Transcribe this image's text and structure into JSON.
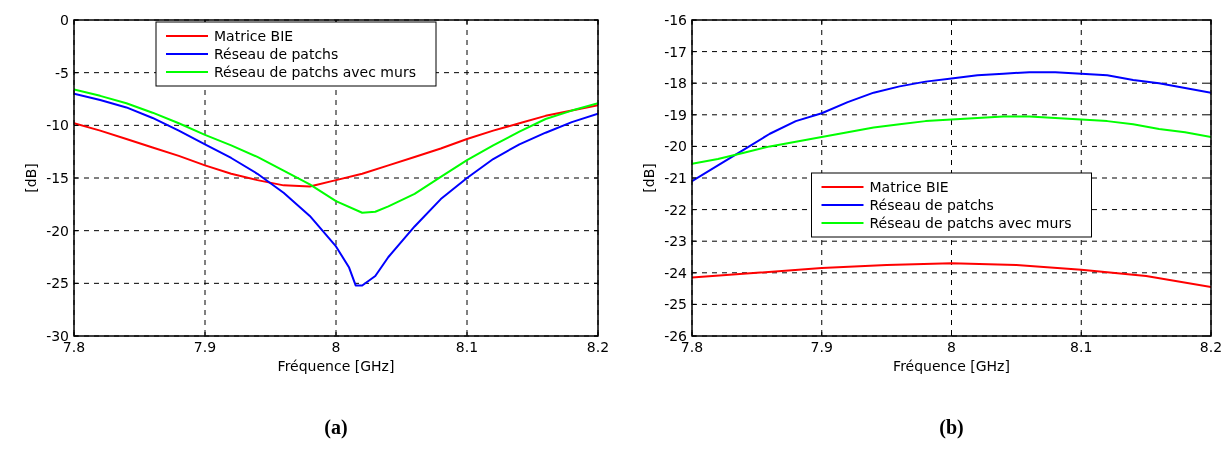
{
  "chart_data": [
    {
      "type": "line",
      "title": "(a)",
      "xlabel": "Fréquence [GHz]",
      "ylabel": "[dB]",
      "xlim": [
        7.8,
        8.2
      ],
      "ylim": [
        -30,
        0
      ],
      "xticks": [
        7.8,
        7.9,
        8,
        8.1,
        8.2
      ],
      "yticks": [
        -30,
        -25,
        -20,
        -15,
        -10,
        -5,
        0
      ],
      "grid": true,
      "legend": "top",
      "series": [
        {
          "name": "Matrice BIE",
          "color": "#ff0000",
          "x": [
            7.8,
            7.82,
            7.84,
            7.86,
            7.88,
            7.9,
            7.92,
            7.94,
            7.96,
            7.98,
            8.0,
            8.02,
            8.04,
            8.06,
            8.08,
            8.1,
            8.12,
            8.14,
            8.16,
            8.18,
            8.2
          ],
          "values": [
            -9.8,
            -10.5,
            -11.3,
            -12.1,
            -12.9,
            -13.8,
            -14.6,
            -15.2,
            -15.7,
            -15.8,
            -15.2,
            -14.6,
            -13.8,
            -13.0,
            -12.2,
            -11.3,
            -10.5,
            -9.8,
            -9.1,
            -8.6,
            -8.1
          ]
        },
        {
          "name": "Réseau de patchs",
          "color": "#0000ff",
          "x": [
            7.8,
            7.82,
            7.84,
            7.86,
            7.88,
            7.9,
            7.92,
            7.94,
            7.96,
            7.98,
            8.0,
            8.01,
            8.015,
            8.02,
            8.03,
            8.04,
            8.06,
            8.08,
            8.1,
            8.12,
            8.14,
            8.16,
            8.18,
            8.2
          ],
          "values": [
            -7.0,
            -7.6,
            -8.3,
            -9.3,
            -10.5,
            -11.8,
            -13.1,
            -14.6,
            -16.4,
            -18.6,
            -21.5,
            -23.5,
            -25.2,
            -25.2,
            -24.3,
            -22.5,
            -19.6,
            -17.0,
            -15.0,
            -13.2,
            -11.8,
            -10.7,
            -9.7,
            -8.9
          ]
        },
        {
          "name": "Réseau de patchs avec murs",
          "color": "#00ff00",
          "x": [
            7.8,
            7.82,
            7.84,
            7.86,
            7.88,
            7.9,
            7.92,
            7.94,
            7.96,
            7.98,
            8.0,
            8.02,
            8.03,
            8.04,
            8.06,
            8.08,
            8.1,
            8.12,
            8.14,
            8.16,
            8.18,
            8.2
          ],
          "values": [
            -6.6,
            -7.2,
            -7.9,
            -8.8,
            -9.8,
            -10.9,
            -11.9,
            -13.0,
            -14.3,
            -15.6,
            -17.2,
            -18.3,
            -18.2,
            -17.7,
            -16.5,
            -14.9,
            -13.3,
            -11.9,
            -10.6,
            -9.4,
            -8.6,
            -7.9
          ]
        }
      ]
    },
    {
      "type": "line",
      "title": "(b)",
      "xlabel": "Fréquence [GHz]",
      "ylabel": "[dB]",
      "xlim": [
        7.8,
        8.2
      ],
      "ylim": [
        -26,
        -16
      ],
      "xticks": [
        7.8,
        7.9,
        8,
        8.1,
        8.2
      ],
      "yticks": [
        -26,
        -25,
        -24,
        -23,
        -22,
        -21,
        -20,
        -19,
        -18,
        -17,
        -16
      ],
      "grid": true,
      "legend": "center",
      "series": [
        {
          "name": "Matrice BIE",
          "color": "#ff0000",
          "x": [
            7.8,
            7.85,
            7.9,
            7.95,
            8.0,
            8.05,
            8.1,
            8.15,
            8.2
          ],
          "values": [
            -24.15,
            -24.0,
            -23.85,
            -23.75,
            -23.7,
            -23.75,
            -23.9,
            -24.1,
            -24.45
          ]
        },
        {
          "name": "Réseau de patchs",
          "color": "#0000ff",
          "x": [
            7.8,
            7.82,
            7.84,
            7.86,
            7.88,
            7.9,
            7.92,
            7.94,
            7.96,
            7.98,
            8.0,
            8.02,
            8.04,
            8.06,
            8.08,
            8.1,
            8.12,
            8.14,
            8.16,
            8.18,
            8.2
          ],
          "values": [
            -21.1,
            -20.6,
            -20.1,
            -19.6,
            -19.2,
            -18.95,
            -18.6,
            -18.3,
            -18.1,
            -17.95,
            -17.85,
            -17.75,
            -17.7,
            -17.65,
            -17.65,
            -17.7,
            -17.75,
            -17.9,
            -18.0,
            -18.15,
            -18.3
          ]
        },
        {
          "name": "Réseau de patchs avec murs",
          "color": "#00ff00",
          "x": [
            7.8,
            7.82,
            7.84,
            7.86,
            7.88,
            7.9,
            7.92,
            7.94,
            7.96,
            7.98,
            8.0,
            8.02,
            8.04,
            8.06,
            8.08,
            8.1,
            8.12,
            8.14,
            8.16,
            8.18,
            8.2
          ],
          "values": [
            -20.55,
            -20.4,
            -20.2,
            -20.0,
            -19.85,
            -19.7,
            -19.55,
            -19.4,
            -19.3,
            -19.2,
            -19.15,
            -19.1,
            -19.05,
            -19.05,
            -19.1,
            -19.15,
            -19.2,
            -19.3,
            -19.45,
            -19.55,
            -19.7
          ]
        }
      ]
    }
  ]
}
